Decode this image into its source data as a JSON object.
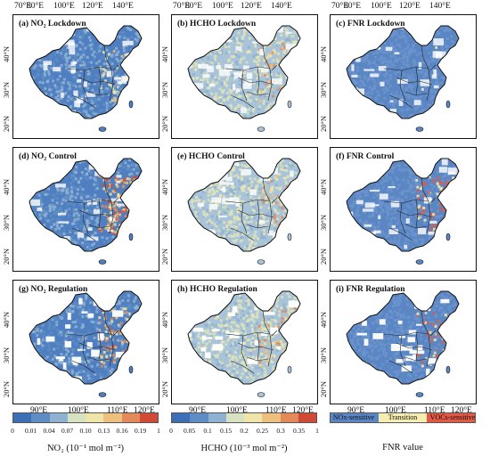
{
  "axes": {
    "top_lon_labels": [
      "70°E",
      "80°E",
      "100°E",
      "120°E",
      "140°E"
    ],
    "bottom_lon_labels": [
      "90°E",
      "100°E",
      "110°E",
      "120°E"
    ],
    "lat_labels": [
      "40°N",
      "30°N",
      "20°N"
    ]
  },
  "maps": [
    {
      "label": "(a) NO₂ Lockdown",
      "variable": "NO2",
      "scenario": "Lockdown",
      "hotspot_level": 0.35
    },
    {
      "label": "(b) HCHO Lockdown",
      "variable": "HCHO",
      "scenario": "Lockdown",
      "hotspot_level": 0.6
    },
    {
      "label": "(c) FNR Lockdown",
      "variable": "FNR",
      "scenario": "Lockdown",
      "hotspot_level": 0.1
    },
    {
      "label": "(d) NO₂ Control",
      "variable": "NO2",
      "scenario": "Control",
      "hotspot_level": 1.0
    },
    {
      "label": "(e) HCHO Control",
      "variable": "HCHO",
      "scenario": "Control",
      "hotspot_level": 0.45
    },
    {
      "label": "(f) FNR Control",
      "variable": "FNR",
      "scenario": "Control",
      "hotspot_level": 0.9
    },
    {
      "label": "(g) NO₂ Regulation",
      "variable": "NO2",
      "scenario": "Regulation",
      "hotspot_level": 0.75
    },
    {
      "label": "(h) HCHO Regulation",
      "variable": "HCHO",
      "scenario": "Regulation",
      "hotspot_level": 0.55
    },
    {
      "label": "(i) FNR Regulation",
      "variable": "FNR",
      "scenario": "Regulation",
      "hotspot_level": 0.7
    }
  ],
  "legends": {
    "no2": {
      "ticks": [
        "0",
        "0.01",
        "0.04",
        "0.07",
        "0.10",
        "0.13",
        "0.16",
        "0.19",
        "1"
      ],
      "title": "NO₂ (10⁻¹ mol m⁻²)",
      "colors": [
        "#3b6fb6",
        "#5d8dc4",
        "#8fb2d3",
        "#d7e3c0",
        "#f0e5a8",
        "#efc07d",
        "#e48a5a",
        "#d14a36"
      ]
    },
    "hcho": {
      "ticks": [
        "0",
        "0.05",
        "0.1",
        "0.15",
        "0.2",
        "0.25",
        "0.3",
        "0.35",
        "1"
      ],
      "title": "HCHO (10⁻³ mol m⁻²)",
      "colors": [
        "#3b6fb6",
        "#5d8dc4",
        "#8fb2d3",
        "#d7e3c0",
        "#f0e5a8",
        "#efc07d",
        "#e48a5a",
        "#d14a36"
      ]
    },
    "fnr": {
      "categories": [
        "NOx-sensitive",
        "Transition",
        "VOCs-sensitive"
      ],
      "title": "FNR value",
      "colors": [
        "#5b86c4",
        "#f5eeb0",
        "#e25a45"
      ]
    }
  },
  "colors": {
    "background": "#ffffff",
    "outline": "#111111",
    "land_blue": "#4f7fc0"
  }
}
